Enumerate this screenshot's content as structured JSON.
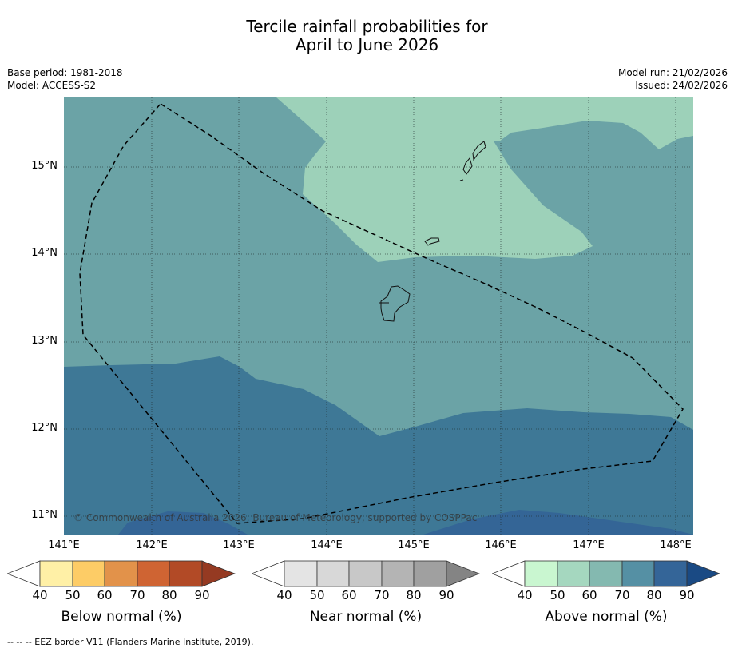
{
  "title_line1": "Tercile rainfall probabilities for",
  "title_line2": "April to June 2026",
  "meta": {
    "base_period": "Base period: 1981-2018",
    "model": "Model: ACCESS-S2",
    "model_run": "Model run: 21/02/2026",
    "issued": "Issued: 24/02/2026"
  },
  "map": {
    "copyright": "© Commonwealth of Australia 2026, Bureau of Meteorology, supported by COSPPac",
    "lat_labels": [
      "15°N",
      "14°N",
      "13°N",
      "12°N",
      "11°N"
    ],
    "lon_labels": [
      "141°E",
      "142°E",
      "143°E",
      "144°E",
      "145°E",
      "146°E",
      "147°E",
      "148°E"
    ],
    "colors": {
      "above_60_70": "#6ba3a6",
      "above_50_60": "#9dd1b9",
      "above_70_80": "#3e7896",
      "above_80_90": "#346596"
    }
  },
  "colorbars": [
    {
      "label": "Below normal (%)",
      "ticks": [
        "40",
        "50",
        "60",
        "70",
        "80",
        "90"
      ],
      "colors": [
        "#fff0a6",
        "#fdcc66",
        "#e2924a",
        "#cf6433",
        "#b24a26",
        "#953a22"
      ]
    },
    {
      "label": "Near normal (%)",
      "ticks": [
        "40",
        "50",
        "60",
        "70",
        "80",
        "90"
      ],
      "colors": [
        "#e4e4e4",
        "#d8d8d8",
        "#c8c8c8",
        "#b4b4b4",
        "#a0a0a0",
        "#848484"
      ]
    },
    {
      "label": "Above normal (%)",
      "ticks": [
        "40",
        "50",
        "60",
        "70",
        "80",
        "90"
      ],
      "colors": [
        "#c9f6d0",
        "#a5d7bf",
        "#84b9b0",
        "#5590a4",
        "#346598",
        "#1a4a84"
      ]
    }
  ],
  "footer": "--  --  -- EEZ border V11 (Flanders Marine Institute, 2019)."
}
